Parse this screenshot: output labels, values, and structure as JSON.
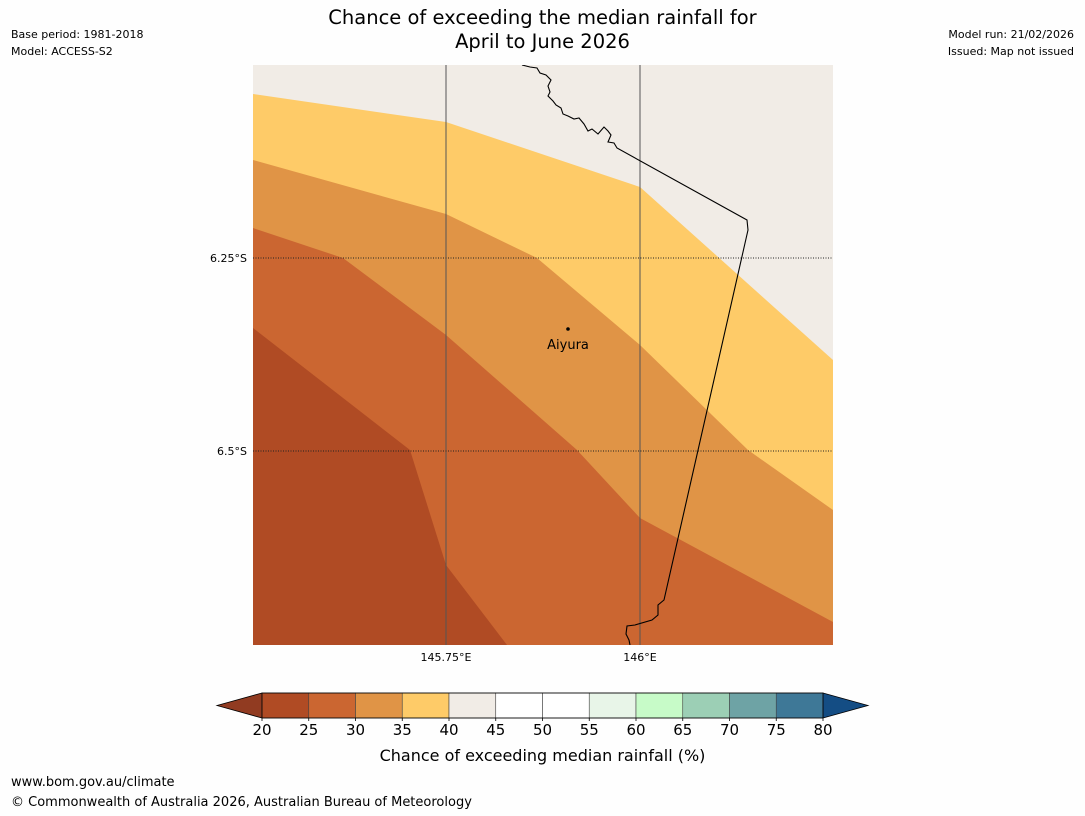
{
  "title": {
    "line1": "Chance of exceeding the median rainfall for",
    "line2": "April to June 2026"
  },
  "meta_left": {
    "base_period": "Base period: 1981-2018",
    "model": "Model: ACCESS-S2"
  },
  "meta_right": {
    "model_run": "Model run: 21/02/2026",
    "issued": "Issued: Map not issued"
  },
  "map": {
    "lat_labels": [
      "6.25°S",
      "6.5°S"
    ],
    "lon_labels": [
      "145.75°E",
      "146°E"
    ],
    "place": "Aiyura"
  },
  "colorbar": {
    "ticks": [
      "20",
      "25",
      "30",
      "35",
      "40",
      "45",
      "50",
      "55",
      "60",
      "65",
      "70",
      "75",
      "80"
    ],
    "colors": [
      "#b04b24",
      "#cb6631",
      "#e09446",
      "#fecb68",
      "#f1ece6",
      "#ffffff",
      "#ffffff",
      "#e8f5e8",
      "#c7fbc8",
      "#9ccfb5",
      "#6ea3a5",
      "#3e7897"
    ],
    "under_color": "#913b21",
    "over_color": "#144d84",
    "label": "Chance of exceeding median rainfall (%)"
  },
  "footer": {
    "url": "www.bom.gov.au/climate",
    "copyright": "© Commonwealth of Australia 2026, Australian Bureau of Meteorology"
  }
}
